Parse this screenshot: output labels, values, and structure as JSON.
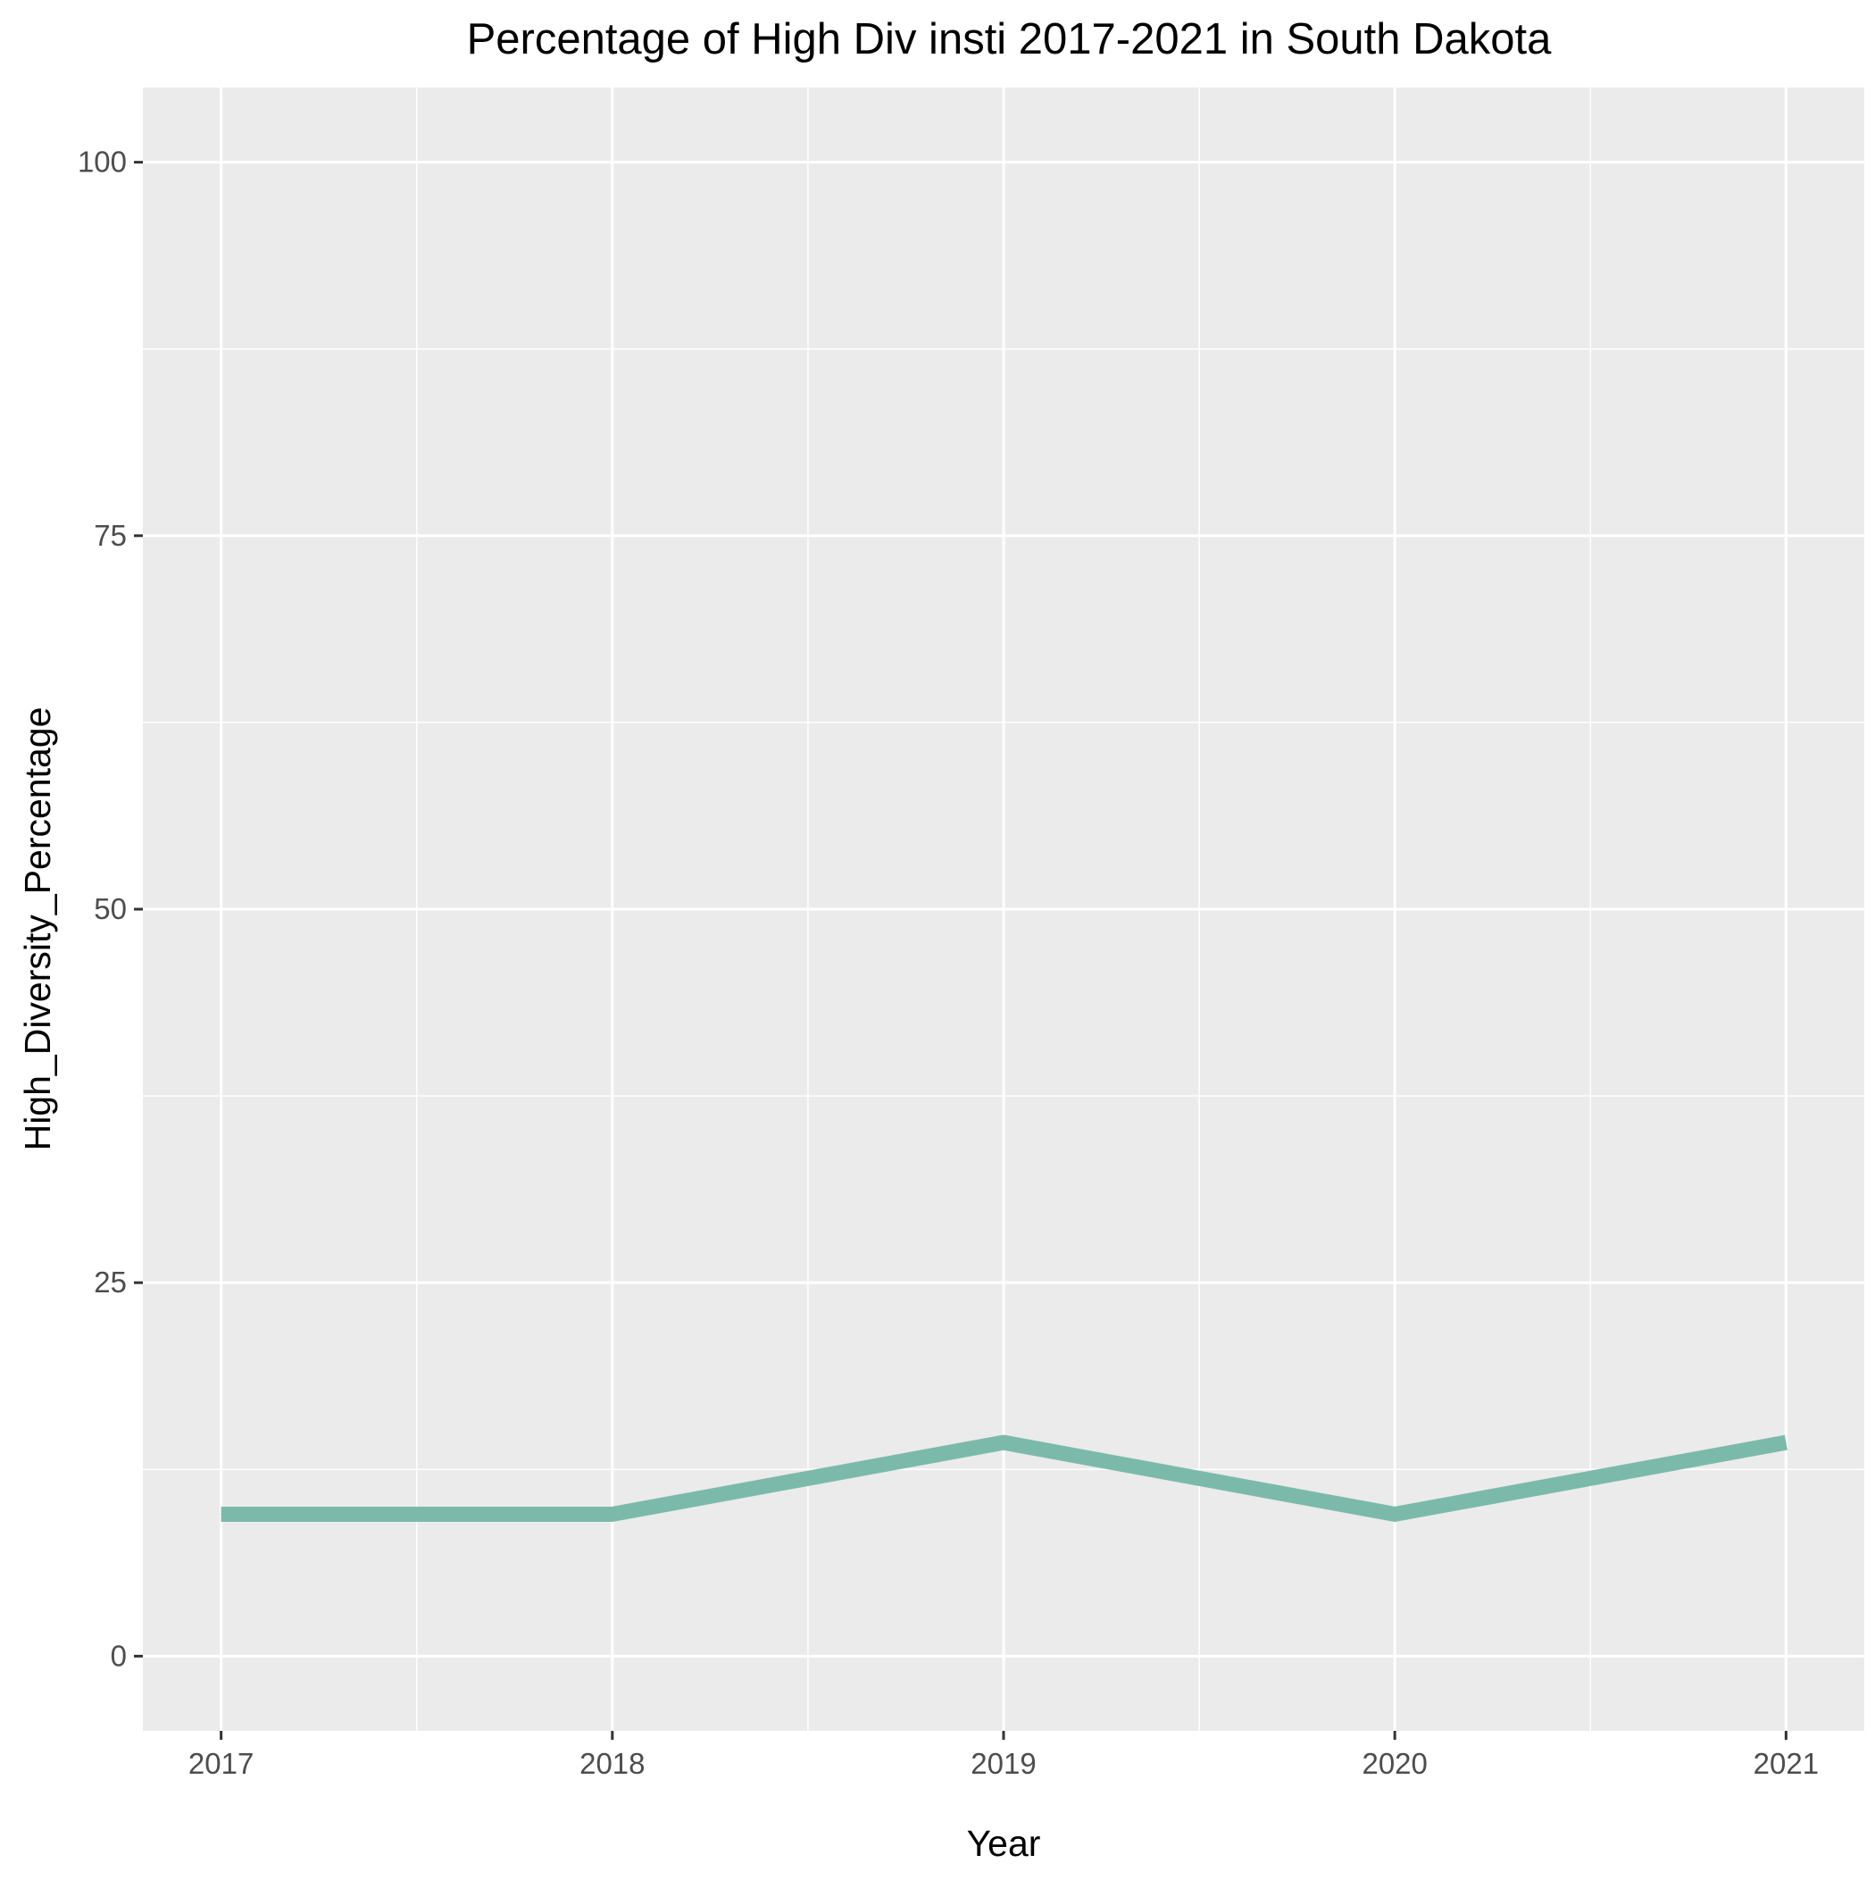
{
  "chart_data": {
    "type": "line",
    "title": "Percentage of High Div insti 2017-2021 in South Dakota",
    "xlabel": "Year",
    "ylabel": "High_Diversity_Percentage",
    "x": [
      2017,
      2018,
      2019,
      2020,
      2021
    ],
    "series": [
      {
        "values": [
          9.5,
          9.5,
          14.3,
          9.5,
          14.3
        ]
      }
    ],
    "xlim": [
      2016.8,
      2021.2
    ],
    "ylim": [
      -5,
      105
    ],
    "y_ticks": [
      0,
      25,
      50,
      75,
      100
    ],
    "x_ticks": [
      2017,
      2018,
      2019,
      2020,
      2021
    ],
    "grid": true,
    "legend": "none",
    "colors": {
      "line": "#7bbaaa",
      "panel_background": "#ebebeb",
      "grid": "#ffffff",
      "tick_label": "#4d4d4d",
      "tick_mark": "#333333"
    }
  }
}
